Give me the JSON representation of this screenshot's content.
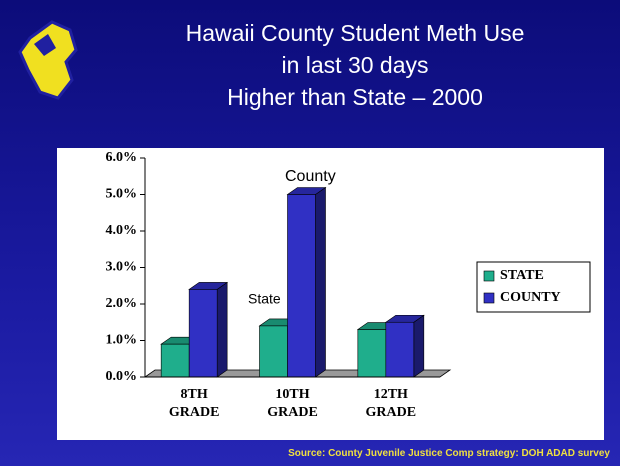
{
  "chart_data": {
    "type": "bar3d",
    "title": [
      "Hawaii County Student Meth Use",
      "in last 30 days",
      "Higher than State – 2000"
    ],
    "categories": [
      "8TH GRADE",
      "10TH GRADE",
      "12TH GRADE"
    ],
    "series": [
      {
        "name": "STATE",
        "color": "#1fae8c",
        "values": [
          0.9,
          1.4,
          1.3
        ]
      },
      {
        "name": "COUNTY",
        "color": "#3030c4",
        "values": [
          2.4,
          5.0,
          1.5
        ]
      }
    ],
    "ylim": [
      0,
      6
    ],
    "yticks": [
      {
        "value": 0,
        "label": "0.0%"
      },
      {
        "value": 1,
        "label": "1.0%"
      },
      {
        "value": 2,
        "label": "2.0%"
      },
      {
        "value": 3,
        "label": "3.0%"
      },
      {
        "value": 4,
        "label": "4.0%"
      },
      {
        "value": 5,
        "label": "5.0%"
      },
      {
        "value": 6,
        "label": "6.0%"
      }
    ],
    "annotations": [
      "County",
      "State"
    ],
    "source": "Source:  County Juvenile Justice Comp strategy: DOH ADAD survey",
    "legend": "right"
  }
}
